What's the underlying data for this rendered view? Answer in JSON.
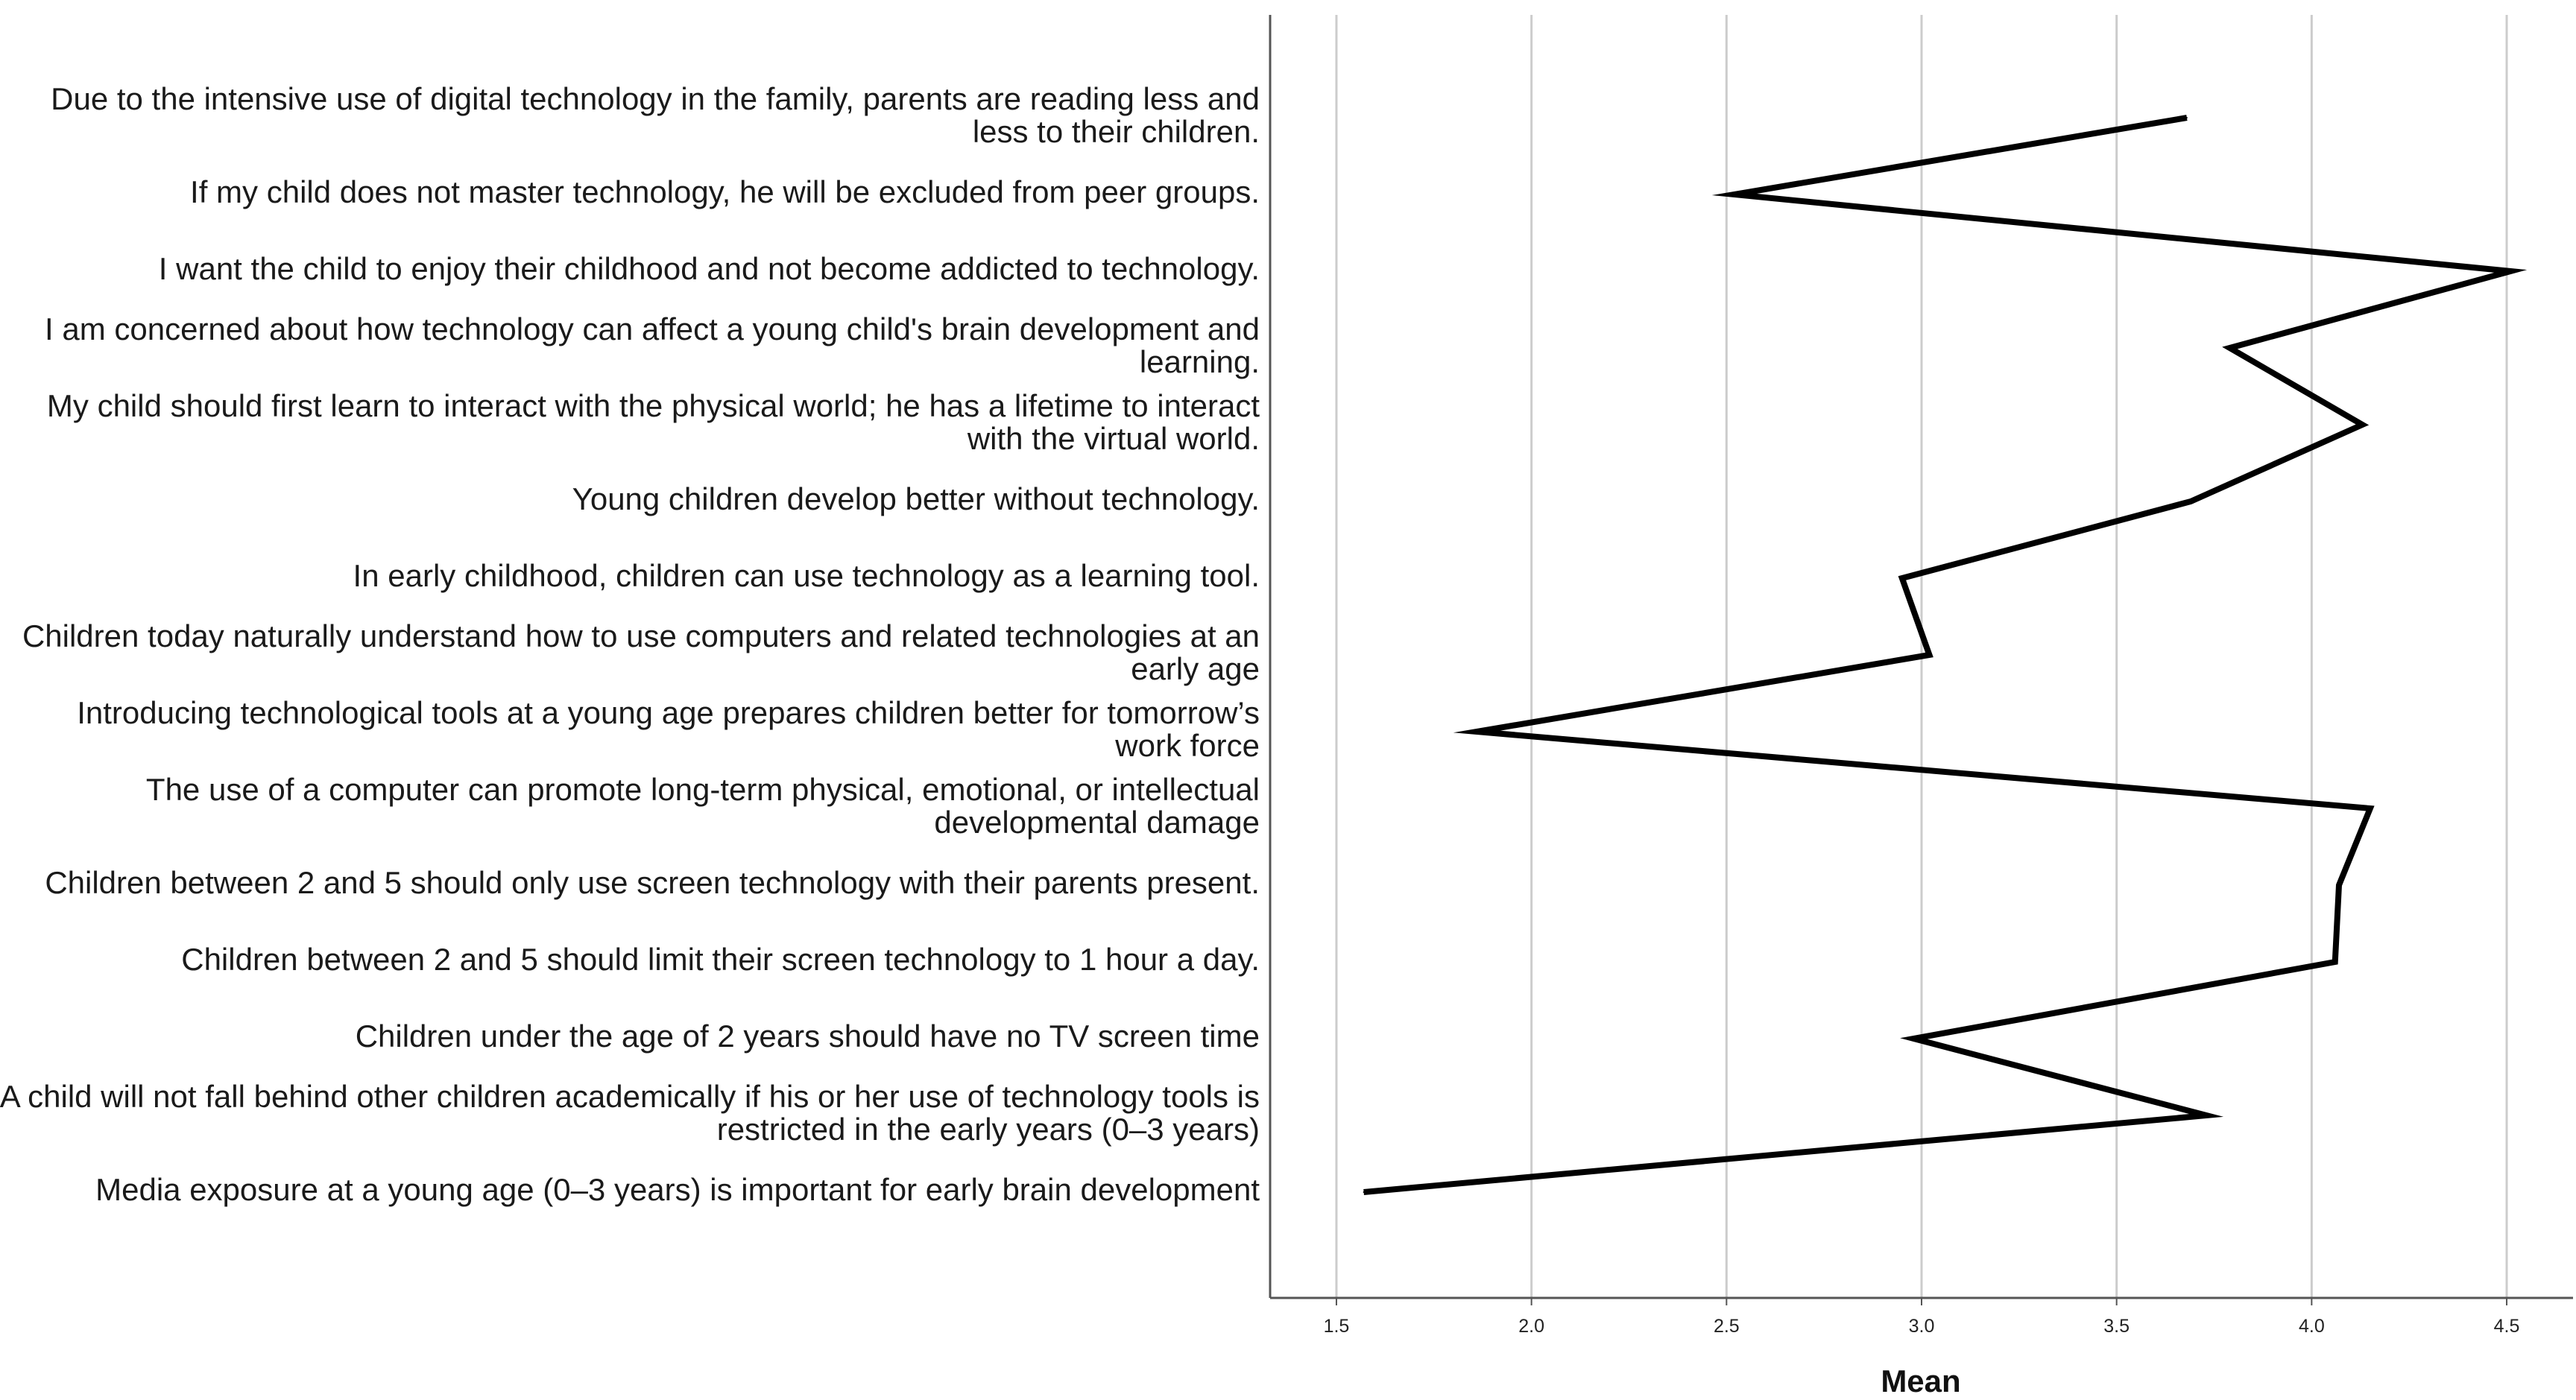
{
  "chart_data": {
    "type": "line",
    "orientation": "horizontal",
    "title": "",
    "xlabel": "Mean",
    "ylabel": "",
    "xlim": [
      1.33,
      4.67
    ],
    "xticks": [
      "1.5",
      "2.0",
      "2.5",
      "3.0",
      "3.5",
      "4.0",
      "4.5"
    ],
    "grid": true,
    "legend": "none",
    "colors": {
      "line": "#000000",
      "grid": "#cccccc",
      "axis": "#555555"
    },
    "categories": [
      [
        "Due to the intensive use of digital technology in the family, parents are reading less and",
        "less to their children."
      ],
      [
        "If my child does not master technology, he will be excluded from peer groups."
      ],
      [
        "I want the child to enjoy their childhood and not become addicted to technology."
      ],
      [
        "I am concerned about how technology can affect a young child's brain development and",
        "learning."
      ],
      [
        "My child should first learn to interact with the physical world; he has a lifetime to interact",
        "with the virtual world."
      ],
      [
        "Young children develop better without technology."
      ],
      [
        "In early childhood, children can use technology as a learning tool."
      ],
      [
        "Children today naturally understand how to use computers and related technologies at an",
        "early age"
      ],
      [
        "Introducing technological tools at a young age prepares children better for tomorrow’s",
        "work force"
      ],
      [
        "The use of a computer can promote long-term physical, emotional, or intellectual",
        "developmental damage"
      ],
      [
        "Children between 2 and 5 should only use screen technology with their parents present."
      ],
      [
        "Children between 2 and 5 should limit their screen technology to 1 hour a day."
      ],
      [
        "Children under the age of 2 years should have no TV screen time"
      ],
      [
        "A child will not fall behind other children academically if his or her use of technology tools is",
        "restricted in the early years (0–3 years)"
      ],
      [
        "Media exposure at a young age (0–3 years) is important for early brain development"
      ]
    ],
    "series": [
      {
        "values": [
          3.68,
          2.52,
          4.51,
          3.79,
          4.13,
          3.69,
          2.95,
          3.02,
          1.86,
          4.15,
          4.07,
          4.06,
          2.98,
          3.73,
          1.57
        ]
      }
    ]
  }
}
